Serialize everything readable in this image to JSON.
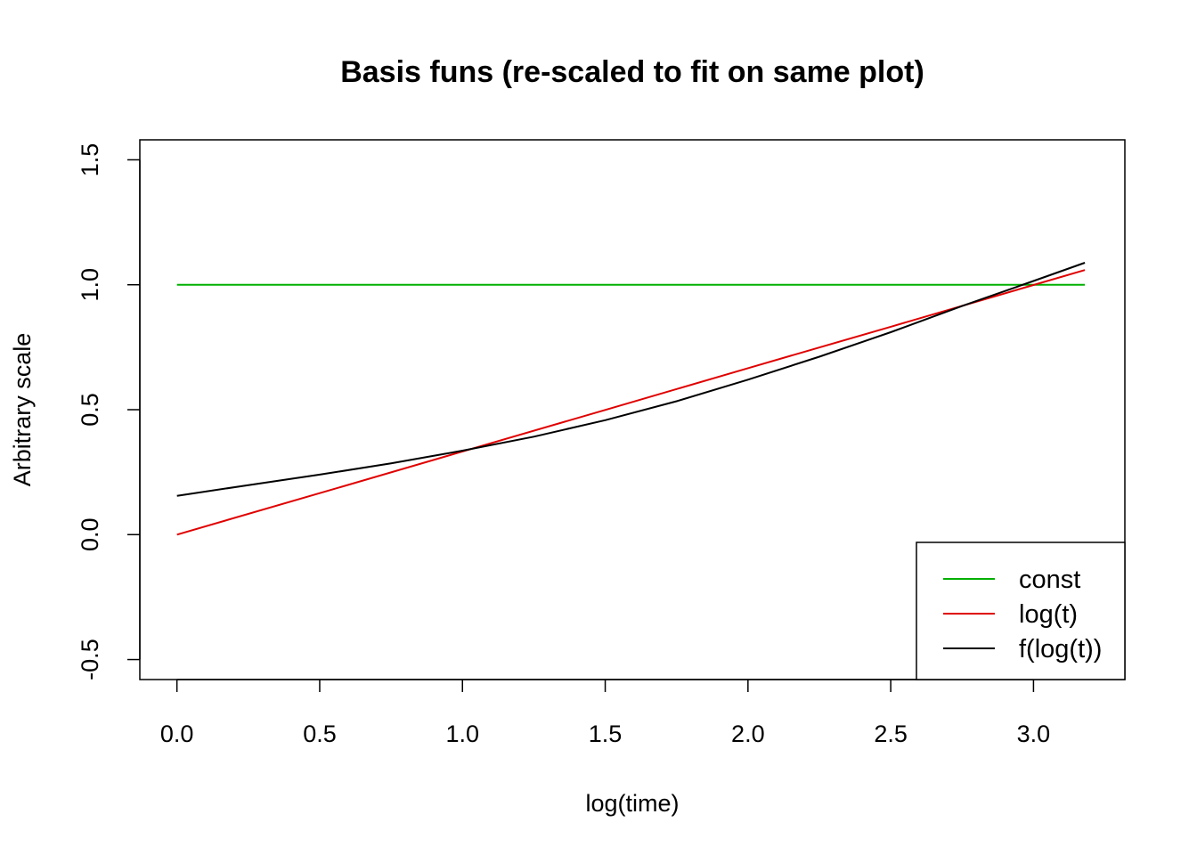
{
  "chart_data": {
    "type": "line",
    "title": "Basis funs (re-scaled to fit on same plot)",
    "xlabel": "log(time)",
    "ylabel": "Arbitrary scale",
    "xlim": [
      -0.13,
      3.32
    ],
    "ylim": [
      -0.58,
      1.58
    ],
    "x_ticks": [
      0.0,
      0.5,
      1.0,
      1.5,
      2.0,
      2.5,
      3.0
    ],
    "x_tick_labels": [
      "0.0",
      "0.5",
      "1.0",
      "1.5",
      "2.0",
      "2.5",
      "3.0"
    ],
    "y_ticks": [
      -0.5,
      0.0,
      0.5,
      1.0,
      1.5
    ],
    "y_tick_labels": [
      "-0.5",
      "0.0",
      "0.5",
      "1.0",
      "1.5"
    ],
    "grid": false,
    "legend_position": "bottom-right",
    "series": [
      {
        "name": "const",
        "color": "#00b000",
        "x": [
          0.0,
          0.5,
          1.0,
          1.5,
          2.0,
          2.5,
          3.0,
          3.18
        ],
        "y": [
          1.0,
          1.0,
          1.0,
          1.0,
          1.0,
          1.0,
          1.0,
          1.0
        ]
      },
      {
        "name": "log(t)",
        "color": "#e00000",
        "x": [
          0.0,
          0.5,
          1.0,
          1.5,
          2.0,
          2.5,
          3.0,
          3.18
        ],
        "y": [
          0.0,
          0.166,
          0.333,
          0.499,
          0.666,
          0.832,
          0.999,
          1.059
        ]
      },
      {
        "name": "f(log(t))",
        "color": "#000000",
        "x": [
          0.0,
          0.25,
          0.5,
          0.75,
          1.0,
          1.25,
          1.5,
          1.75,
          2.0,
          2.25,
          2.5,
          2.75,
          3.0,
          3.18
        ],
        "y": [
          0.155,
          0.198,
          0.24,
          0.285,
          0.336,
          0.392,
          0.458,
          0.534,
          0.62,
          0.712,
          0.81,
          0.915,
          1.015,
          1.088
        ]
      }
    ]
  }
}
